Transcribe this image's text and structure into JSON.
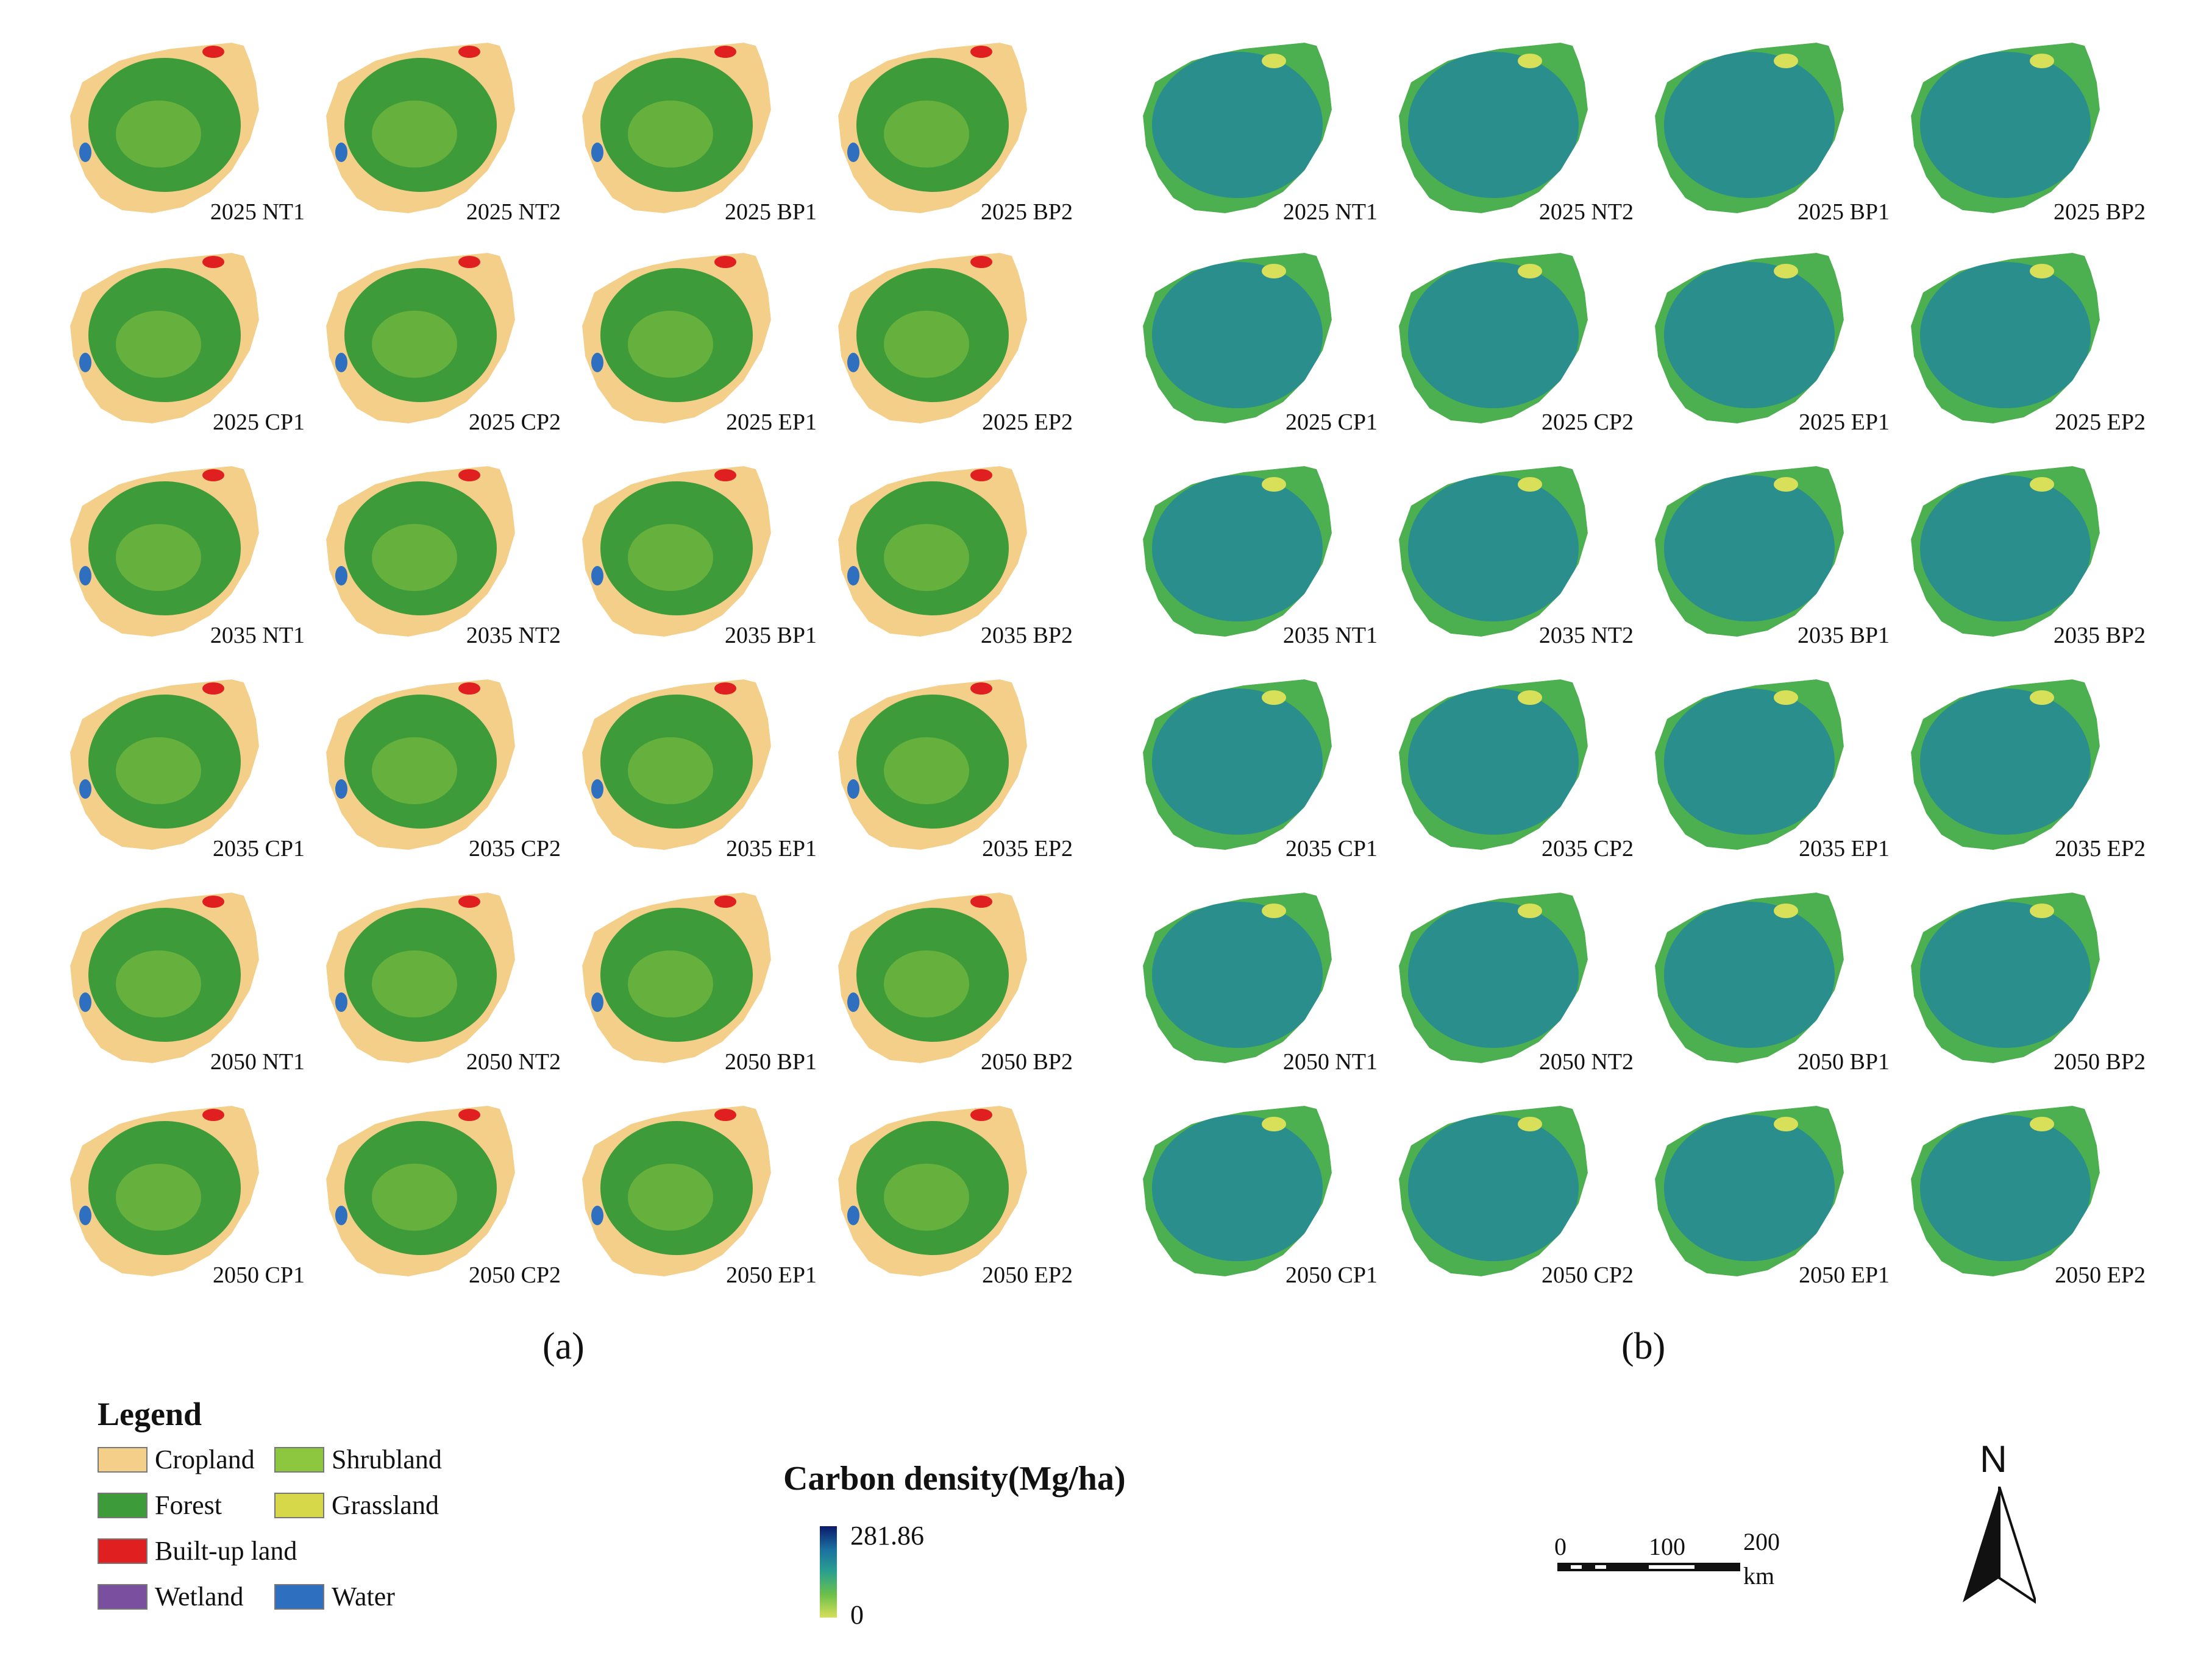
{
  "panel_a_label": "(a)",
  "panel_b_label": "(b)",
  "panel_a_captions": [
    "2025 NT1",
    "2025 NT2",
    "2025 BP1",
    "2025 BP2",
    "2025 CP1",
    "2025 CP2",
    "2025 EP1",
    "2025 EP2",
    "2035 NT1",
    "2035 NT2",
    "2035 BP1",
    "2035 BP2",
    "2035 CP1",
    "2035 CP2",
    "2035 EP1",
    "2035 EP2",
    "2050 NT1",
    "2050 NT2",
    "2050 BP1",
    "2050 BP2",
    "2050 CP1",
    "2050 CP2",
    "2050 EP1",
    "2050 EP2"
  ],
  "panel_b_captions": [
    "2025 NT1",
    "2025 NT2",
    "2025 BP1",
    "2025 BP2",
    "2025 CP1",
    "2025 CP2",
    "2025 EP1",
    "2025 EP2",
    "2035 NT1",
    "2035 NT2",
    "2035 BP1",
    "2035 BP2",
    "2035 CP1",
    "2035 CP2",
    "2035 EP1",
    "2035 EP2",
    "2050 NT1",
    "2050 NT2",
    "2050 BP1",
    "2050 BP2",
    "2050 CP1",
    "2050 CP2",
    "2050 EP1",
    "2050 EP2"
  ],
  "legend": {
    "title": "Legend",
    "items": [
      {
        "label": "Cropland",
        "color": "#f3cf8a"
      },
      {
        "label": "Shrubland",
        "color": "#8dc63f"
      },
      {
        "label": "Forest",
        "color": "#3e9b3a"
      },
      {
        "label": "Grassland",
        "color": "#d6d84a"
      },
      {
        "label": "Built-up land",
        "color": "#e02020"
      },
      {
        "label": "Wetland",
        "color": "#7b4fa0"
      },
      {
        "label": "Water",
        "color": "#2e6fc0"
      }
    ]
  },
  "carbon_legend": {
    "title": "Carbon density(Mg/ha)",
    "max": "281.86",
    "min": "0"
  },
  "scalebar": {
    "ticks": [
      "0",
      "100",
      "200"
    ],
    "unit": "km"
  },
  "north_arrow": {
    "label": "N"
  },
  "colors": {
    "cropland": "#f3cf8a",
    "forest": "#3e9b3a",
    "shrubland": "#8dc63f",
    "builtup": "#e02020",
    "water": "#2e6fc0",
    "carbon_high": "#2a8e8c",
    "carbon_mid": "#4caf50",
    "carbon_low": "#d8df58"
  }
}
